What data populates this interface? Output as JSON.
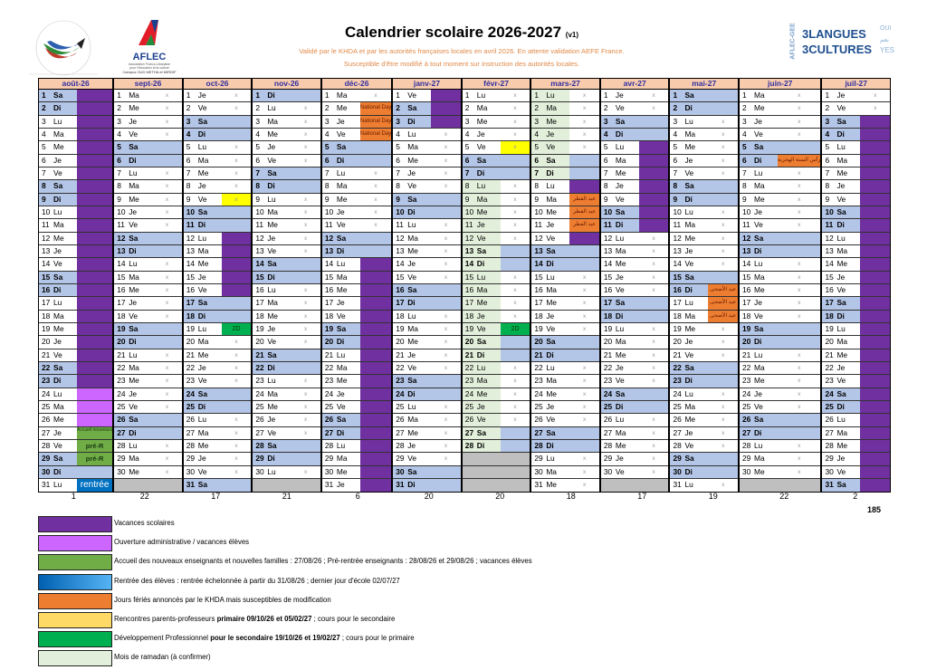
{
  "header": {
    "title": "Calendrier scolaire 2026-2027",
    "version": "(v1)",
    "subtitle1": "Validé par le KHDA et par les autorités françaises locales en avril 2026. En attente validation AEFE France.",
    "subtitle2": "Susceptible d'être modifié à tout moment sur instruction des autorités locales."
  },
  "logos": {
    "lfid_ring": "Lycée Français International Dubai",
    "lfid_bottom": "Etablissements AFLEC",
    "aflec": "AFLEC",
    "aflec_sub1": "Association Franco-Libanaise",
    "aflec_sub2": "pour l'éducation et la culture",
    "aflec_campus": "Campus OUD METHA et MIRDIF",
    "gee": "AFLEC-GEE",
    "langues": "3LANGUES",
    "cultures": "3CULTURES",
    "oui": "OUI",
    "naam": "نعم",
    "yes": "YES"
  },
  "weekdays": [
    "Lu",
    "Ma",
    "Me",
    "Je",
    "Ve",
    "Sa",
    "Di"
  ],
  "school_day_mark": "x",
  "months": [
    {
      "label": "août-26",
      "start": 5,
      "days": 31,
      "count": "1"
    },
    {
      "label": "sept-26",
      "start": 1,
      "days": 30,
      "count": "22"
    },
    {
      "label": "oct-26",
      "start": 3,
      "days": 31,
      "count": "17"
    },
    {
      "label": "nov-26",
      "start": 6,
      "days": 30,
      "count": "21"
    },
    {
      "label": "déc-26",
      "start": 1,
      "days": 31,
      "count": "6"
    },
    {
      "label": "janv-27",
      "start": 4,
      "days": 31,
      "count": "20"
    },
    {
      "label": "févr-27",
      "start": 0,
      "days": 28,
      "count": "20"
    },
    {
      "label": "mars-27",
      "start": 0,
      "days": 31,
      "count": "18"
    },
    {
      "label": "avr-27",
      "start": 3,
      "days": 30,
      "count": "17"
    },
    {
      "label": "mai-27",
      "start": 5,
      "days": 31,
      "count": "19"
    },
    {
      "label": "juin-27",
      "start": 1,
      "days": 30,
      "count": "22"
    },
    {
      "label": "juil-27",
      "start": 3,
      "days": 31,
      "count": "2"
    }
  ],
  "total": "185",
  "events": [
    {
      "m": 0,
      "from": 1,
      "to": 23,
      "type": "vac"
    },
    {
      "m": 0,
      "from": 24,
      "to": 26,
      "type": "ouv"
    },
    {
      "m": 0,
      "from": 27,
      "to": 27,
      "type": "acc",
      "label": "Accueil nouveaux"
    },
    {
      "m": 0,
      "from": 28,
      "to": 29,
      "type": "prer",
      "label": "pré-R"
    },
    {
      "m": 0,
      "from": 31,
      "to": 31,
      "type": "rent",
      "label": "rentrée"
    },
    {
      "m": 2,
      "from": 9,
      "to": 9,
      "type": "ppr",
      "label": "x"
    },
    {
      "m": 2,
      "from": 12,
      "to": 16,
      "type": "vac"
    },
    {
      "m": 2,
      "from": 19,
      "to": 19,
      "type": "dp2",
      "label": "2D"
    },
    {
      "m": 4,
      "from": 2,
      "to": 4,
      "type": "fer",
      "label": "National Day"
    },
    {
      "m": 4,
      "from": 14,
      "to": 31,
      "type": "vac"
    },
    {
      "m": 5,
      "from": 1,
      "to": 3,
      "type": "vac"
    },
    {
      "m": 6,
      "from": 5,
      "to": 5,
      "type": "ppr",
      "label": "x"
    },
    {
      "m": 6,
      "from": 19,
      "to": 19,
      "type": "dp2",
      "label": "2D"
    },
    {
      "m": 7,
      "from": 8,
      "to": 8,
      "type": "vac"
    },
    {
      "m": 7,
      "from": 9,
      "to": 11,
      "type": "fer",
      "label": "عيد الفطر"
    },
    {
      "m": 7,
      "from": 12,
      "to": 12,
      "type": "vac"
    },
    {
      "m": 8,
      "from": 5,
      "to": 11,
      "type": "vac"
    },
    {
      "m": 9,
      "from": 16,
      "to": 18,
      "type": "fer",
      "label": "عيد الأضحى"
    },
    {
      "m": 10,
      "from": 6,
      "to": 6,
      "type": "fer",
      "label": "رأس السنة الهجرية"
    },
    {
      "m": 11,
      "from": 3,
      "to": 31,
      "type": "vac"
    }
  ],
  "ramadan": [
    {
      "m": 6,
      "from": 8,
      "to": 28
    },
    {
      "m": 7,
      "from": 1,
      "to": 7
    }
  ],
  "legend": [
    {
      "color": "#7030a0",
      "text": "Vacances scolaires"
    },
    {
      "color": "#cc66ff",
      "text": "Ouverture administrative / vacances élèves"
    },
    {
      "color": "#70ad47",
      "text": "Accueil des nouveaux enseignants et nouvelles familles : 27/08/26 ; Pré-rentrée enseignants : 28/08/26 et 29/08/26 ; vacances élèves"
    },
    {
      "color": "linear-gradient(90deg,#0060b0,#56b4f4)",
      "text": "Rentrée des élèves : rentrée échelonnée à partir du 31/08/26 ; dernier jour d'école 02/07/27"
    },
    {
      "color": "#ed7d31",
      "text": "Jours fériés annoncés par le KHDA mais susceptibles de modification"
    },
    {
      "color": "#ffd966",
      "text": "Rencontres parents-professeurs",
      "bold": "primaire 09/10/26 et 05/02/27",
      "rest": " ; cours pour le secondaire"
    },
    {
      "color": "#00b050",
      "text": "Développement Professionnel",
      "bold": "pour le secondaire 19/10/26 et 19/02/27",
      "rest": " ; cours pour le primaire"
    },
    {
      "color": "#e2efda",
      "text": "Mois de ramadan (à confirmer)"
    }
  ]
}
